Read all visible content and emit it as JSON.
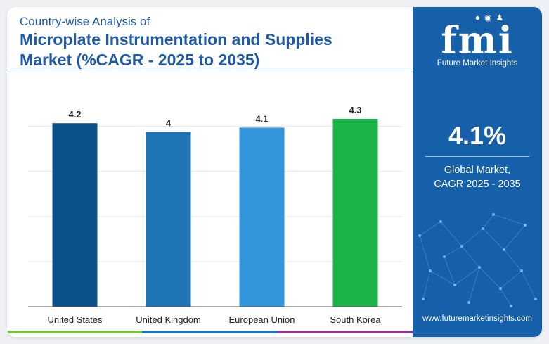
{
  "title": {
    "line1": "Country-wise Analysis of",
    "line2": "Microplate Instrumentation and Supplies",
    "line3": "Market (%CAGR - 2025 to 2035)"
  },
  "chart_data": {
    "type": "bar",
    "categories": [
      "United States",
      "United Kingdom",
      "European Union",
      "South Korea"
    ],
    "values": [
      4.2,
      4,
      4.1,
      4.3
    ],
    "value_labels": [
      "4.2",
      "4",
      "4.1",
      "4.3"
    ],
    "bar_colors": [
      "#0b5189",
      "#1f74b5",
      "#3396dc",
      "#1cb54a"
    ],
    "title": "",
    "xlabel": "",
    "ylabel": "",
    "ylim": [
      0,
      4.3
    ],
    "grid": true,
    "legend": "none"
  },
  "side_panel": {
    "logo_text": "fmi",
    "logo_subtitle": "Future Market Insights",
    "cagr_value": "4.1%",
    "cagr_label_line1": "Global Market,",
    "cagr_label_line2": "CAGR 2025 - 2035",
    "website": "www.futuremarketinsights.com"
  },
  "colors": {
    "title": "#1f5aa6",
    "panel": "#1560a8",
    "bottom_bar": [
      "#7cc242",
      "#1f74b5",
      "#8e3a8e"
    ]
  }
}
